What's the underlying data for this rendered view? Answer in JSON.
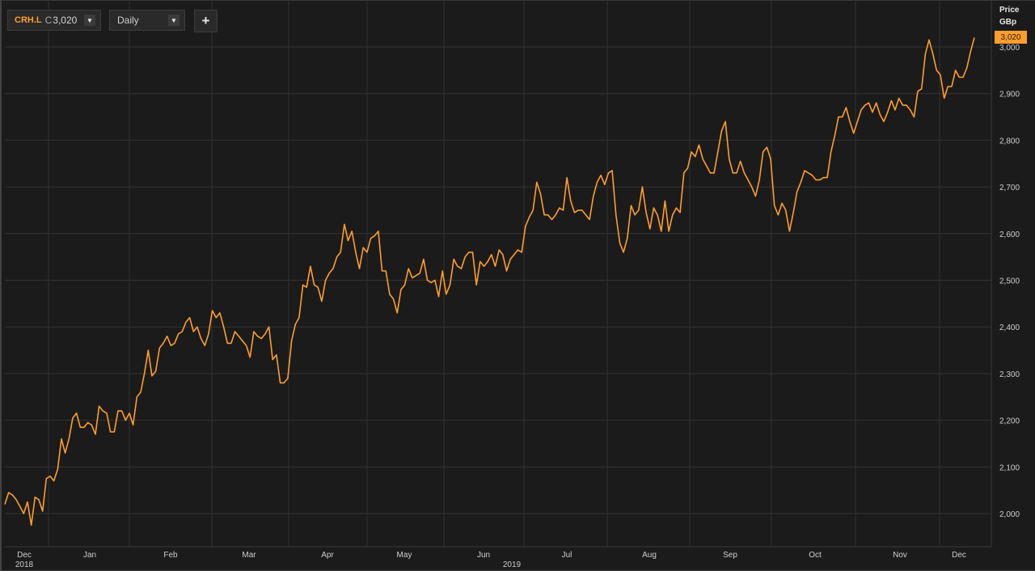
{
  "toolbar": {
    "symbol": "CRH.L",
    "close_prefix": "C",
    "close_value": "3,020",
    "interval": "Daily",
    "add_label": "+",
    "dropdown_icon": "triangle-down-icon"
  },
  "axis_header": {
    "line1": "Price",
    "line2": "GBp"
  },
  "last_price_label": "3,020",
  "colors": {
    "line": "#ff9e2c",
    "background": "#1b1b1b",
    "grid": "#333333"
  },
  "chart_data": {
    "type": "line",
    "series": [
      {
        "values": [
          2020,
          2045,
          2040,
          2030,
          2015,
          2000,
          2025,
          1975,
          2035,
          2030,
          2005,
          2075,
          2080,
          2070,
          2095,
          2160,
          2130,
          2160,
          2205,
          2215,
          2185,
          2185,
          2195,
          2190,
          2170,
          2230,
          2220,
          2215,
          2175,
          2175,
          2220,
          2220,
          2200,
          2215,
          2190,
          2250,
          2260,
          2300,
          2350,
          2295,
          2305,
          2355,
          2365,
          2380,
          2360,
          2365,
          2385,
          2390,
          2410,
          2420,
          2390,
          2400,
          2375,
          2360,
          2385,
          2435,
          2420,
          2430,
          2400,
          2365,
          2365,
          2390,
          2380,
          2370,
          2360,
          2335,
          2390,
          2380,
          2375,
          2385,
          2400,
          2330,
          2340,
          2280,
          2280,
          2290,
          2370,
          2405,
          2420,
          2490,
          2485,
          2530,
          2490,
          2485,
          2455,
          2500,
          2515,
          2525,
          2550,
          2560,
          2620,
          2585,
          2605,
          2560,
          2525,
          2570,
          2560,
          2590,
          2595,
          2605,
          2520,
          2520,
          2470,
          2460,
          2430,
          2480,
          2490,
          2525,
          2505,
          2510,
          2515,
          2545,
          2500,
          2495,
          2500,
          2465,
          2520,
          2470,
          2490,
          2545,
          2530,
          2525,
          2550,
          2560,
          2560,
          2490,
          2540,
          2530,
          2540,
          2555,
          2530,
          2565,
          2555,
          2520,
          2545,
          2555,
          2565,
          2560,
          2615,
          2635,
          2650,
          2710,
          2685,
          2640,
          2640,
          2630,
          2640,
          2655,
          2650,
          2720,
          2670,
          2645,
          2650,
          2650,
          2640,
          2630,
          2680,
          2710,
          2725,
          2705,
          2730,
          2735,
          2640,
          2580,
          2560,
          2590,
          2660,
          2640,
          2650,
          2700,
          2645,
          2610,
          2655,
          2640,
          2605,
          2670,
          2605,
          2640,
          2655,
          2645,
          2730,
          2740,
          2775,
          2765,
          2790,
          2760,
          2745,
          2730,
          2730,
          2775,
          2820,
          2840,
          2760,
          2730,
          2730,
          2755,
          2730,
          2715,
          2700,
          2680,
          2715,
          2775,
          2785,
          2760,
          2660,
          2640,
          2665,
          2650,
          2605,
          2645,
          2690,
          2710,
          2735,
          2730,
          2725,
          2715,
          2715,
          2720,
          2720,
          2775,
          2810,
          2850,
          2850,
          2870,
          2840,
          2815,
          2840,
          2865,
          2875,
          2880,
          2860,
          2880,
          2855,
          2840,
          2860,
          2885,
          2865,
          2890,
          2875,
          2875,
          2865,
          2850,
          2905,
          2910,
          2985,
          3015,
          2985,
          2950,
          2940,
          2890,
          2915,
          2915,
          2950,
          2935,
          2935,
          2955,
          2990,
          3020
        ]
      }
    ],
    "x_axis": {
      "months": [
        "Dec",
        "Jan",
        "Feb",
        "Mar",
        "Apr",
        "May",
        "Jun",
        "Jul",
        "Aug",
        "Sep",
        "Oct",
        "Nov",
        "Dec"
      ],
      "years": [
        "2018",
        "2019"
      ]
    },
    "y_axis": {
      "label": "Price GBp",
      "ticks": [
        "2,000",
        "2,100",
        "2,200",
        "2,300",
        "2,400",
        "2,500",
        "2,600",
        "2,700",
        "2,800",
        "2,900",
        "3,000"
      ],
      "tick_values": [
        2000,
        2100,
        2200,
        2300,
        2400,
        2500,
        2600,
        2700,
        2800,
        2900,
        3000
      ],
      "range": [
        1940,
        3050
      ]
    },
    "grid": true
  }
}
